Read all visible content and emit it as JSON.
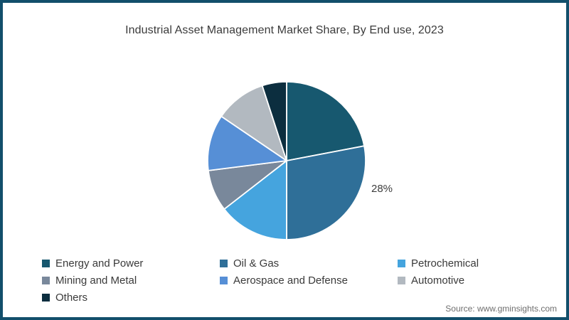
{
  "title": "Industrial Asset Management Market Share, By End use, 2023",
  "source": "Source: www.gminsights.com",
  "annotation": {
    "oil_gas_pct_label": "28%"
  },
  "frame": {
    "border_color": "#124f6b",
    "background": "#ffffff",
    "title_color": "#3b3b3b",
    "source_color": "#6e6e6e"
  },
  "chart_data": {
    "type": "pie",
    "title": "Industrial Asset Management Market Share, By End use, 2023",
    "labels": [
      "Energy and Power",
      "Oil & Gas",
      "Petrochemical",
      "Mining and Metal",
      "Aerospace and Defense",
      "Automotive",
      "Others"
    ],
    "values": [
      22,
      28,
      14.5,
      8.5,
      11.5,
      10.5,
      5
    ],
    "colors": [
      "#17586f",
      "#2f6f98",
      "#45a4de",
      "#79889b",
      "#568fd6",
      "#b2b9c0",
      "#0c2e3f"
    ],
    "data_labels": [
      {
        "slice": "Oil & Gas",
        "label": "28%"
      }
    ],
    "start_angle_deg": 0,
    "direction": "clockwise",
    "separator_color": "#ffffff",
    "legend_position": "bottom-left",
    "legend_columns": 3
  }
}
